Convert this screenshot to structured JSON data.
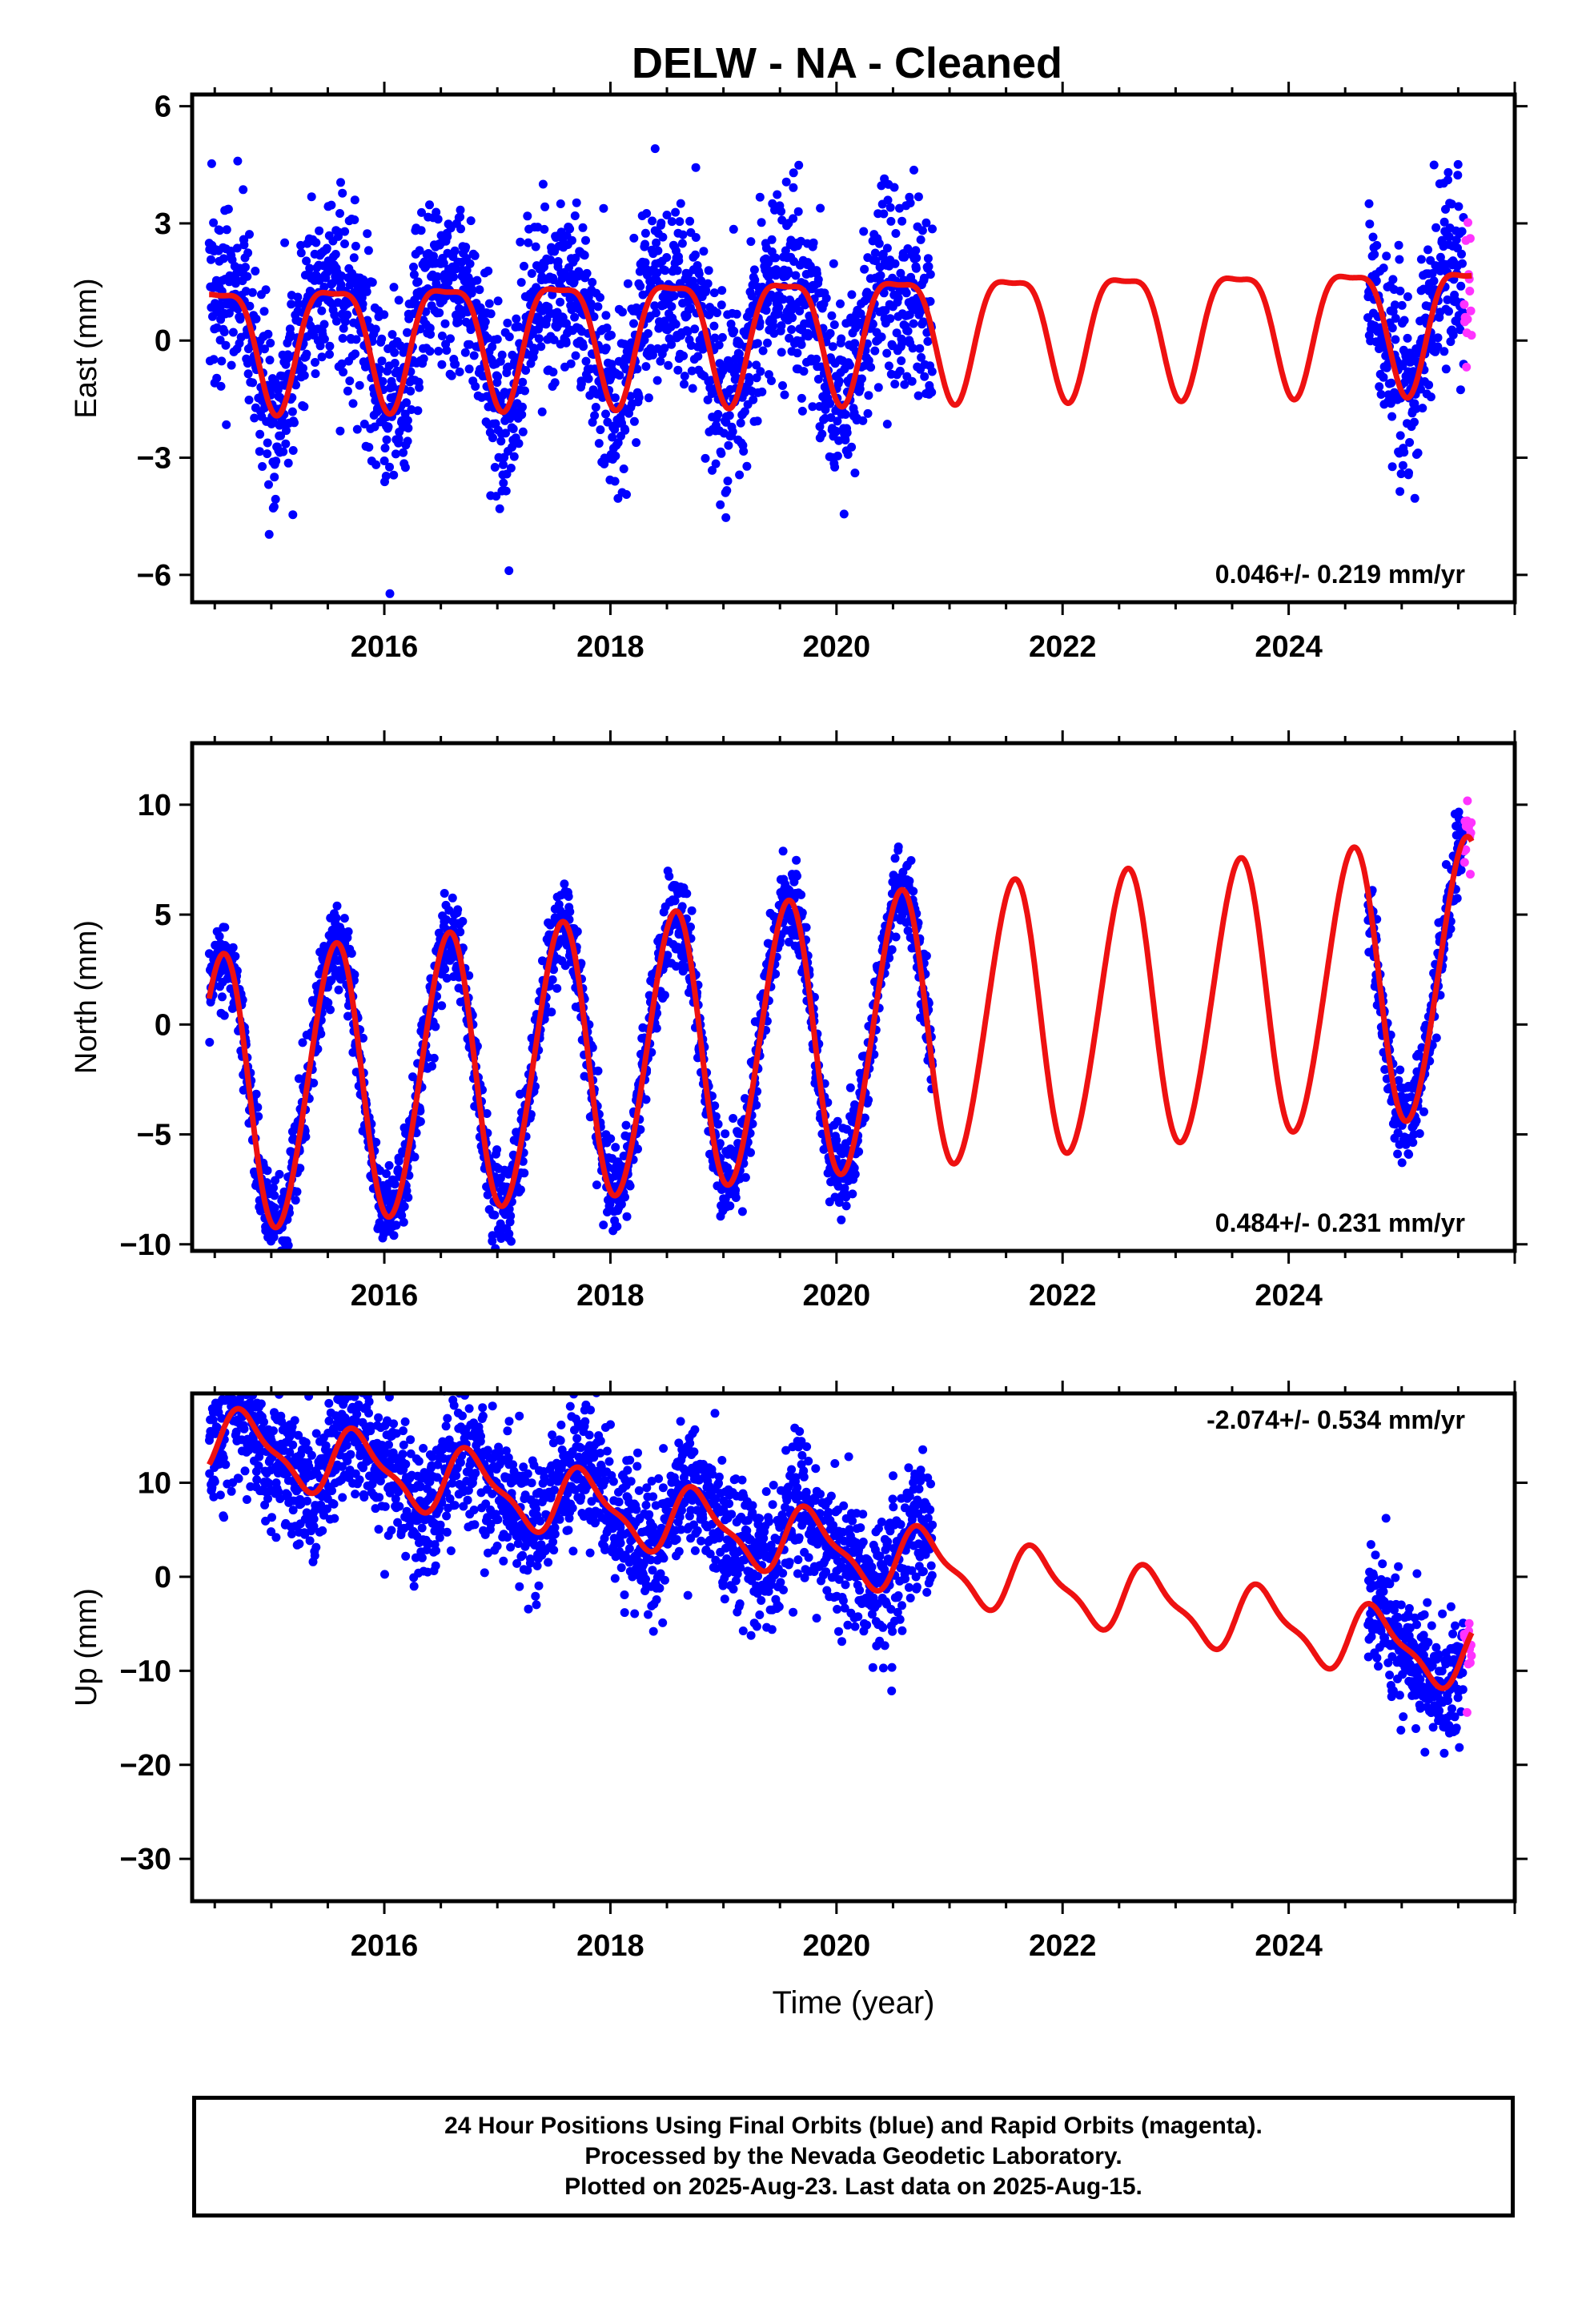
{
  "figure": {
    "title": "DELW  - NA - Cleaned",
    "colors": {
      "final": "#0000ff",
      "rapid": "#ff33ff",
      "model": "#ee1111",
      "frame": "#000000"
    }
  },
  "chart_data": [
    {
      "type": "scatter",
      "component": "east",
      "ylabel": "East (mm)",
      "xlabel": "",
      "xlim": [
        2014.3,
        2026.0
      ],
      "ylim": [
        -6.7,
        6.3
      ],
      "xticks": [
        2016,
        2018,
        2020,
        2022,
        2024
      ],
      "yticks": [
        -6,
        -3,
        0,
        3,
        6
      ],
      "ytick_labels": [
        "−6",
        "−3",
        "0",
        "3",
        "6"
      ],
      "rate_label": "0.046+/- 0.219 mm/yr",
      "model": {
        "offset": 0.3,
        "trend": 0.046,
        "annual_amp": 1.55,
        "annual_phase_day": 200,
        "semiannual_amp": 0.45,
        "semiannual_phase_day": 110
      },
      "series": [
        {
          "name": "Final Orbits",
          "color": "#0000ff",
          "segments": [
            [
              2014.45,
              2020.85
            ],
            [
              2024.7,
              2025.55
            ]
          ],
          "scatter_sd": 1.2,
          "approx_points_per_year": 330
        },
        {
          "name": "Rapid Orbits",
          "color": "#ff33ff",
          "segments": [
            [
              2025.55,
              2025.62
            ]
          ],
          "scatter_sd": 1.1,
          "approx_points_per_year": 200
        }
      ]
    },
    {
      "type": "scatter",
      "component": "north",
      "ylabel": "North (mm)",
      "xlabel": "",
      "xlim": [
        2014.3,
        2026.0
      ],
      "ylim": [
        -10.3,
        12.8
      ],
      "xticks": [
        2016,
        2018,
        2020,
        2022,
        2024
      ],
      "yticks": [
        -10,
        -5,
        0,
        5,
        10
      ],
      "ytick_labels": [
        "−10",
        "−5",
        "0",
        "5",
        "10"
      ],
      "rate_label": "0.484+/- 0.231 mm/yr",
      "model": {
        "offset": -0.6,
        "trend": 0.484,
        "annual_amp": 6.3,
        "annual_phase_day": 205,
        "semiannual_amp": 0.4,
        "semiannual_phase_day": 60
      },
      "series": [
        {
          "name": "Final Orbits",
          "color": "#0000ff",
          "segments": [
            [
              2014.45,
              2020.85
            ],
            [
              2024.7,
              2025.55
            ]
          ],
          "scatter_sd": 1.0,
          "approx_points_per_year": 330
        },
        {
          "name": "Rapid Orbits",
          "color": "#ff33ff",
          "segments": [
            [
              2025.55,
              2025.62
            ]
          ],
          "scatter_sd": 0.9,
          "approx_points_per_year": 200
        }
      ]
    },
    {
      "type": "scatter",
      "component": "up",
      "ylabel": "Up (mm)",
      "xlabel": "Time (year)",
      "xlim": [
        2014.3,
        2026.0
      ],
      "ylim": [
        -34.5,
        19.5
      ],
      "xticks": [
        2016,
        2018,
        2020,
        2022,
        2024
      ],
      "yticks": [
        -30,
        -20,
        -10,
        0,
        10
      ],
      "ytick_labels": [
        "−30",
        "−20",
        "−10",
        "0",
        "10"
      ],
      "rate_label": "-2.074+/- 0.534 mm/yr",
      "model": {
        "offset": 3.0,
        "trend": -2.074,
        "annual_amp": 3.3,
        "annual_phase_day": 285,
        "semiannual_amp": 1.1,
        "semiannual_phase_day": 60
      },
      "series": [
        {
          "name": "Final Orbits",
          "color": "#0000ff",
          "segments": [
            [
              2014.45,
              2020.85
            ],
            [
              2024.7,
              2025.55
            ]
          ],
          "scatter_sd": 3.6,
          "approx_points_per_year": 330
        },
        {
          "name": "Rapid Orbits",
          "color": "#ff33ff",
          "segments": [
            [
              2025.55,
              2025.62
            ]
          ],
          "scatter_sd": 3.0,
          "approx_points_per_year": 200
        }
      ]
    }
  ],
  "footer": {
    "line1": "24 Hour Positions Using Final Orbits (blue) and Rapid Orbits (magenta).",
    "line2": "Processed by the Nevada Geodetic Laboratory.",
    "line3": "Plotted on 2025-Aug-23. Last data on 2025-Aug-15."
  }
}
